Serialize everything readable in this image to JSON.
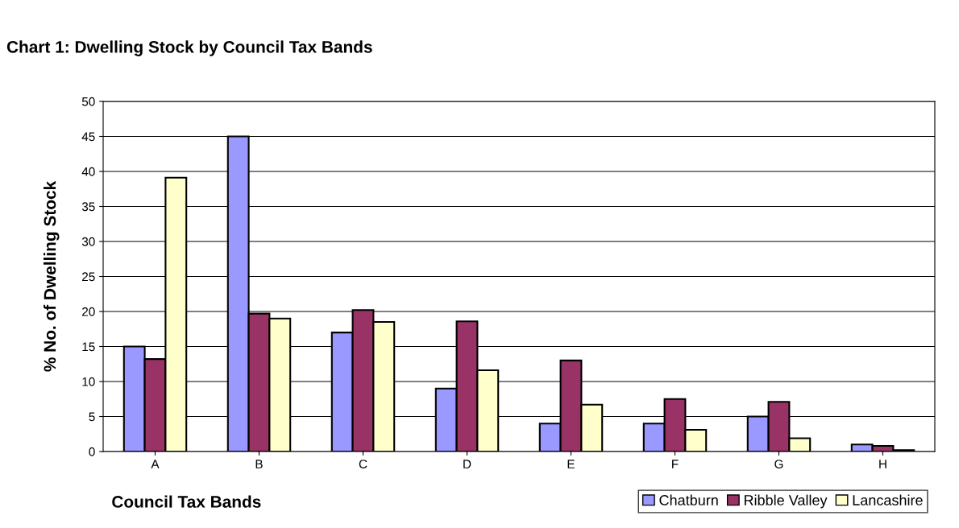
{
  "chart_data": {
    "type": "bar",
    "title": "Chart 1: Dwelling Stock by Council Tax Bands",
    "xlabel": "Council Tax Bands",
    "ylabel": "% No. of Dwelling Stock",
    "categories": [
      "A",
      "B",
      "C",
      "D",
      "E",
      "F",
      "G",
      "H"
    ],
    "series": [
      {
        "name": "Chatburn",
        "color": "#9999ff",
        "values": [
          15,
          45,
          17,
          9,
          4,
          4,
          5,
          1
        ]
      },
      {
        "name": "Ribble Valley",
        "color": "#993366",
        "values": [
          13.2,
          19.7,
          20.2,
          18.6,
          13,
          7.5,
          7.1,
          0.8
        ]
      },
      {
        "name": "Lancashire",
        "color": "#ffffcc",
        "values": [
          39.1,
          19,
          18.5,
          11.6,
          6.7,
          3.1,
          1.9,
          0.2
        ]
      }
    ],
    "ylim": [
      0,
      50
    ],
    "yticks": [
      0,
      5,
      10,
      15,
      20,
      25,
      30,
      35,
      40,
      45,
      50
    ],
    "grid": "y",
    "legend": "bottom right"
  }
}
